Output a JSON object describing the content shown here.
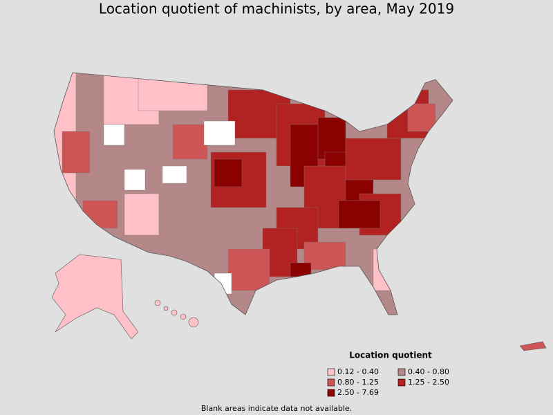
{
  "title": "Location quotient of machinists, by area, May 2019",
  "legend": {
    "title": "Location quotient",
    "items": [
      {
        "label": "0.12 - 0.40",
        "color": "#ffc0c8"
      },
      {
        "label": "0.40 - 0.80",
        "color": "#b48888"
      },
      {
        "label": "0.80 - 1.25",
        "color": "#cd5555"
      },
      {
        "label": "1.25 - 2.50",
        "color": "#b22222"
      },
      {
        "label": "2.50 - 7.69",
        "color": "#8b0000"
      }
    ]
  },
  "footnote": "Blank areas indicate data not available."
}
